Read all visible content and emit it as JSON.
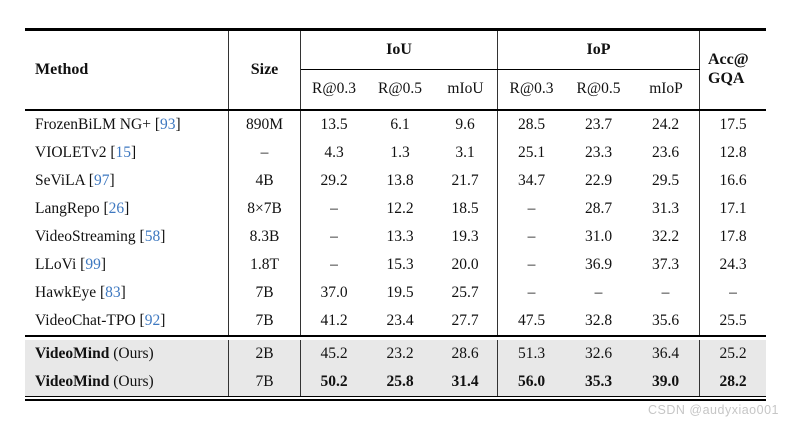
{
  "table": {
    "headers": {
      "method": "Method",
      "size": "Size",
      "group_iou": "IoU",
      "group_iop": "IoP",
      "acc_line1": "Acc@",
      "acc_line2": "GQA"
    },
    "sub_iou": [
      "R@0.3",
      "R@0.5",
      "mIoU"
    ],
    "sub_iop": [
      "R@0.3",
      "R@0.5",
      "mIoP"
    ],
    "rows": [
      {
        "method": "FrozenBiLM NG+",
        "cite": "93",
        "size": "890M",
        "values": [
          "13.5",
          "6.1",
          "9.6",
          "28.5",
          "23.7",
          "24.2",
          "17.5"
        ]
      },
      {
        "method": "VIOLETv2",
        "cite": "15",
        "size": "–",
        "values": [
          "4.3",
          "1.3",
          "3.1",
          "25.1",
          "23.3",
          "23.6",
          "12.8"
        ]
      },
      {
        "method": "SeViLA",
        "cite": "97",
        "size": "4B",
        "values": [
          "29.2",
          "13.8",
          "21.7",
          "34.7",
          "22.9",
          "29.5",
          "16.6"
        ]
      },
      {
        "method": "LangRepo",
        "cite": "26",
        "size": "8×7B",
        "values": [
          "–",
          "12.2",
          "18.5",
          "–",
          "28.7",
          "31.3",
          "17.1"
        ]
      },
      {
        "method": "VideoStreaming",
        "cite": "58",
        "size": "8.3B",
        "values": [
          "–",
          "13.3",
          "19.3",
          "–",
          "31.0",
          "32.2",
          "17.8"
        ]
      },
      {
        "method": "LLoVi",
        "cite": "99",
        "size": "1.8T",
        "values": [
          "–",
          "15.3",
          "20.0",
          "–",
          "36.9",
          "37.3",
          "24.3"
        ]
      },
      {
        "method": "HawkEye",
        "cite": "83",
        "size": "7B",
        "values": [
          "37.0",
          "19.5",
          "25.7",
          "–",
          "–",
          "–",
          "–"
        ]
      },
      {
        "method": "VideoChat-TPO",
        "cite": "92",
        "size": "7B",
        "values": [
          "41.2",
          "23.4",
          "27.7",
          "47.5",
          "32.8",
          "35.6",
          "25.5"
        ]
      },
      {
        "method": "VideoMind",
        "suffix": " (Ours)",
        "bold_method": true,
        "highlight": true,
        "size": "2B",
        "values": [
          "45.2",
          "23.2",
          "28.6",
          "51.3",
          "32.6",
          "36.4",
          "25.2"
        ]
      },
      {
        "method": "VideoMind",
        "suffix": " (Ours)",
        "bold_method": true,
        "highlight": true,
        "bold_values": true,
        "size": "7B",
        "values": [
          "50.2",
          "25.8",
          "31.4",
          "56.0",
          "35.3",
          "39.0",
          "28.2"
        ]
      }
    ]
  },
  "citation_brackets": {
    "open": "[",
    "close": "]"
  },
  "watermark": "CSDN @audyxiao001",
  "colors": {
    "citation_blue": "#3e78c0",
    "highlight_bg": "#e8e8e8",
    "rule_black": "#000000",
    "watermark_gray": "#c6c6c6"
  }
}
